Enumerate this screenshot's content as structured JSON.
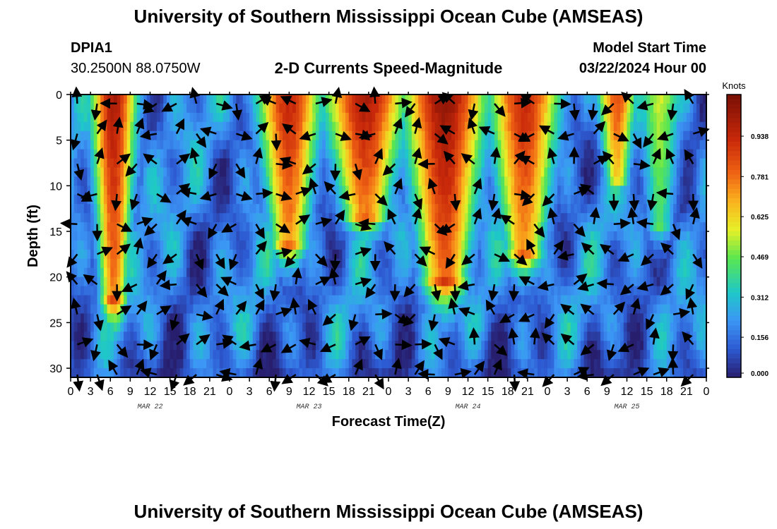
{
  "header": {
    "title": "University of Southern Mississippi Ocean Cube (AMSEAS)",
    "station_id": "DPIA1",
    "coords": "30.2500N  88.0750W",
    "chart_title": "2-D Currents Speed-Magnitude",
    "model_start_label": "Model Start Time",
    "model_start_value": "03/22/2024 Hour 00"
  },
  "footer": {
    "title": "University of Southern Mississippi Ocean Cube (AMSEAS)"
  },
  "chart_data": {
    "type": "heatmap",
    "title": "2-D Currents Speed-Magnitude",
    "xlabel": "Forecast Time(Z)",
    "ylabel": "Depth (ft)",
    "x_ticks": [
      "0",
      "3",
      "6",
      "9",
      "12",
      "15",
      "18",
      "21",
      "0",
      "3",
      "6",
      "9",
      "12",
      "15",
      "18",
      "21",
      "0",
      "3",
      "6",
      "9",
      "12",
      "15",
      "18",
      "21",
      "0",
      "3",
      "6",
      "9",
      "12",
      "15",
      "18",
      "21",
      "0"
    ],
    "x_range_hours": [
      0,
      96
    ],
    "date_labels": [
      {
        "label": "MAR 22",
        "hour": 12
      },
      {
        "label": "MAR 23",
        "hour": 36
      },
      {
        "label": "MAR 24",
        "hour": 60
      },
      {
        "label": "MAR 25",
        "hour": 84
      }
    ],
    "y_ticks": [
      "0",
      "5",
      "10",
      "15",
      "20",
      "25",
      "30"
    ],
    "y_range_ft": [
      0,
      31
    ],
    "colorbar": {
      "title": "Knots",
      "ticks": [
        "0.000",
        "0.156",
        "0.312",
        "0.469",
        "0.625",
        "0.781",
        "0.938"
      ],
      "range": [
        0,
        1.1
      ]
    },
    "fast_current_cores": [
      {
        "center_hour": 6.5,
        "half_width_hours": 3,
        "bottom_depth_ft": 22,
        "peak_knots": 1.0
      },
      {
        "center_hour": 33,
        "half_width_hours": 4.5,
        "bottom_depth_ft": 16,
        "peak_knots": 0.95
      },
      {
        "center_hour": 44.5,
        "half_width_hours": 6,
        "bottom_depth_ft": 13,
        "peak_knots": 1.0
      },
      {
        "center_hour": 56.5,
        "half_width_hours": 6,
        "bottom_depth_ft": 20,
        "peak_knots": 1.05
      },
      {
        "center_hour": 68.5,
        "half_width_hours": 5,
        "bottom_depth_ft": 17,
        "peak_knots": 0.95
      },
      {
        "center_hour": 82.5,
        "half_width_hours": 2.5,
        "bottom_depth_ft": 9,
        "peak_knots": 0.85
      },
      {
        "center_hour": 89,
        "half_width_hours": 3,
        "bottom_depth_ft": 14,
        "peak_knots": 0.55
      }
    ]
  }
}
